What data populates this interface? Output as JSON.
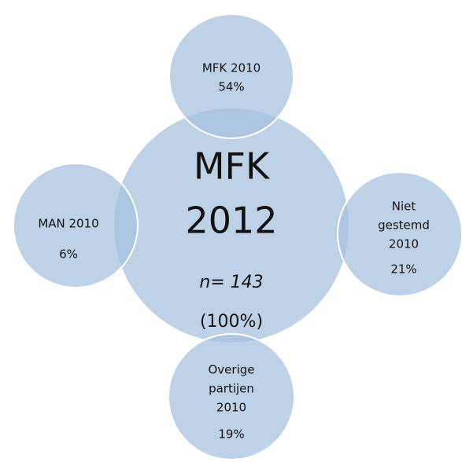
{
  "center": {
    "label_lines": [
      "MFK",
      "2012"
    ],
    "n": "n= 143",
    "share": "(100%)"
  },
  "nodes": [
    {
      "label_lines": [
        "MFK 2010"
      ],
      "share": "54%"
    },
    {
      "label_lines": [
        "Niet",
        "gestemd",
        "2010"
      ],
      "share": "21%"
    },
    {
      "label_lines": [
        "Overige",
        "partijen",
        "2010"
      ],
      "share": "19%"
    },
    {
      "label_lines": [
        "MAN 2010"
      ],
      "share": "6%"
    }
  ]
}
